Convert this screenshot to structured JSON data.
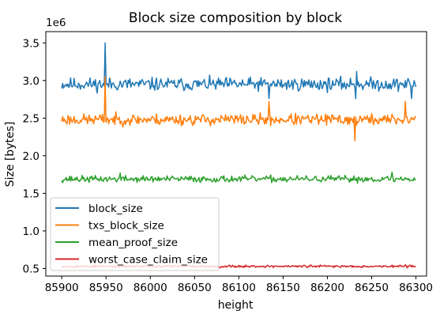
{
  "chart_data": {
    "type": "line",
    "title": "Block size composition by block",
    "xlabel": "height",
    "ylabel": "Size [bytes]",
    "y_multiplier_label": "1e6",
    "xlim": [
      85882,
      86312
    ],
    "ylim": [
      400000,
      3650000
    ],
    "x_ticks": [
      85900,
      85950,
      86000,
      86050,
      86100,
      86150,
      86200,
      86250,
      86300
    ],
    "y_ticks": [
      0.5,
      1.0,
      1.5,
      2.0,
      2.5,
      3.0,
      3.5
    ],
    "grid": false,
    "legend_position": "lower-left",
    "x_start": 85900,
    "x_end": 86300,
    "series": [
      {
        "name": "block_size",
        "color": "#1f77b4",
        "base": 2950000,
        "amp": 80000,
        "seed": 11,
        "spikes": [
          {
            "x": 85949,
            "value": 3500000
          },
          {
            "x": 86134,
            "value": 2760000
          },
          {
            "x": 86232,
            "value": 2760000
          },
          {
            "x": 86295,
            "value": 2760000
          },
          {
            "x": 86233,
            "value": 3120000
          }
        ]
      },
      {
        "name": "txs_block_size",
        "color": "#ff7f0e",
        "base": 2480000,
        "amp": 70000,
        "seed": 23,
        "spikes": [
          {
            "x": 85949,
            "value": 3050000
          },
          {
            "x": 86134,
            "value": 2720000
          },
          {
            "x": 86231,
            "value": 2200000
          },
          {
            "x": 86288,
            "value": 2720000
          }
        ]
      },
      {
        "name": "mean_proof_size",
        "color": "#2ca02c",
        "base": 1690000,
        "amp": 40000,
        "seed": 37,
        "spikes": [
          {
            "x": 85966,
            "value": 1770000
          },
          {
            "x": 86273,
            "value": 1780000
          }
        ]
      },
      {
        "name": "worst_case_claim_size",
        "color": "#d62728",
        "base": 530000,
        "amp": 15000,
        "seed": 53,
        "spikes": []
      }
    ]
  }
}
